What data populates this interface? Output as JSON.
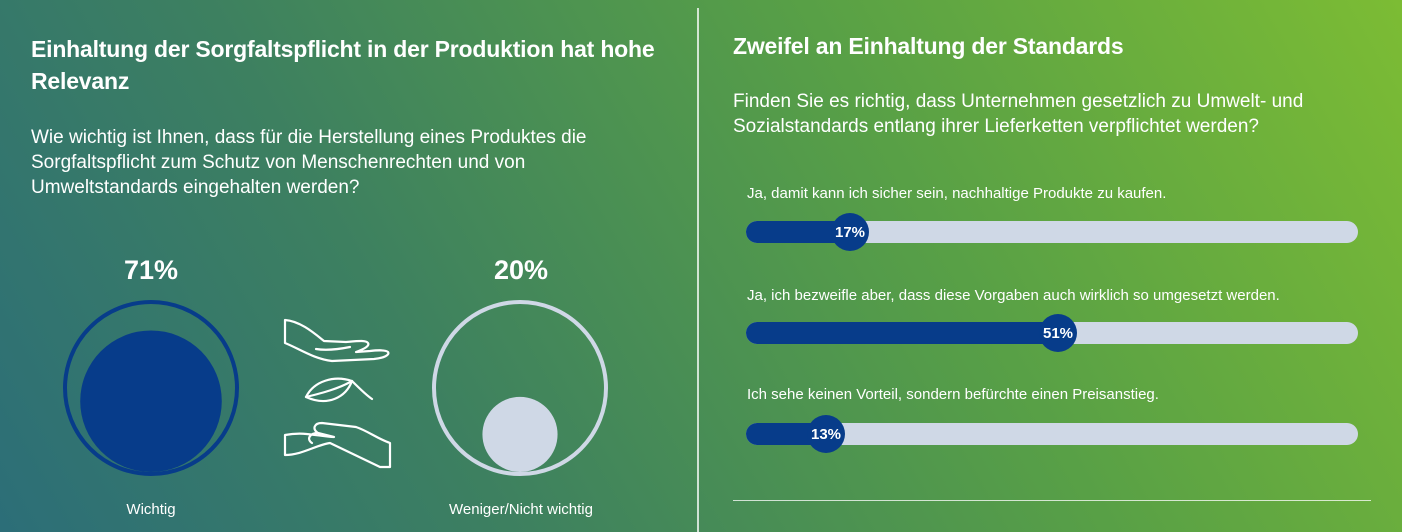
{
  "left_panel": {
    "title": "Einhaltung der Sorgfaltspflicht in der Produktion hat hohe Relevanz",
    "question": "Wie wichtig ist Ihnen, dass für die Herstellung eines Produktes die Sorgfaltspflicht zum Schutz von Menschenrechten und von Umweltstandards eingehalten werden?",
    "icon": "hands-leaf-icon"
  },
  "right_panel": {
    "title": "Zweifel an Einhaltung der Standards",
    "question": "Finden Sie es richtig, dass Unternehmen gesetzlich zu Umwelt- und Sozialstandards entlang ihrer Lieferketten verpflichtet werden?"
  },
  "colors": {
    "dark_blue": "#073c8a",
    "light_track": "#cfd8e6",
    "background_start": "#2c6e78",
    "background_end": "#7cbc34"
  },
  "chart_data": [
    {
      "type": "proportional-circle",
      "categories": [
        "Wichtig",
        "Weniger/Nicht wichtig"
      ],
      "values": [
        71,
        20
      ],
      "labels": [
        "71%",
        "20%"
      ],
      "unit": "%"
    },
    {
      "type": "bar",
      "orientation": "horizontal",
      "categories": [
        "Ja, damit kann ich sicher sein, nachhaltige Produkte zu kaufen.",
        "Ja, ich bezweifle aber, dass diese Vorgaben auch wirklich so umgesetzt werden.",
        "Ich sehe keinen Vorteil, sondern befürchte einen Preisanstieg."
      ],
      "values": [
        17,
        51,
        13
      ],
      "labels": [
        "17%",
        "51%",
        "13%"
      ],
      "xlim": [
        0,
        100
      ],
      "unit": "%"
    }
  ]
}
